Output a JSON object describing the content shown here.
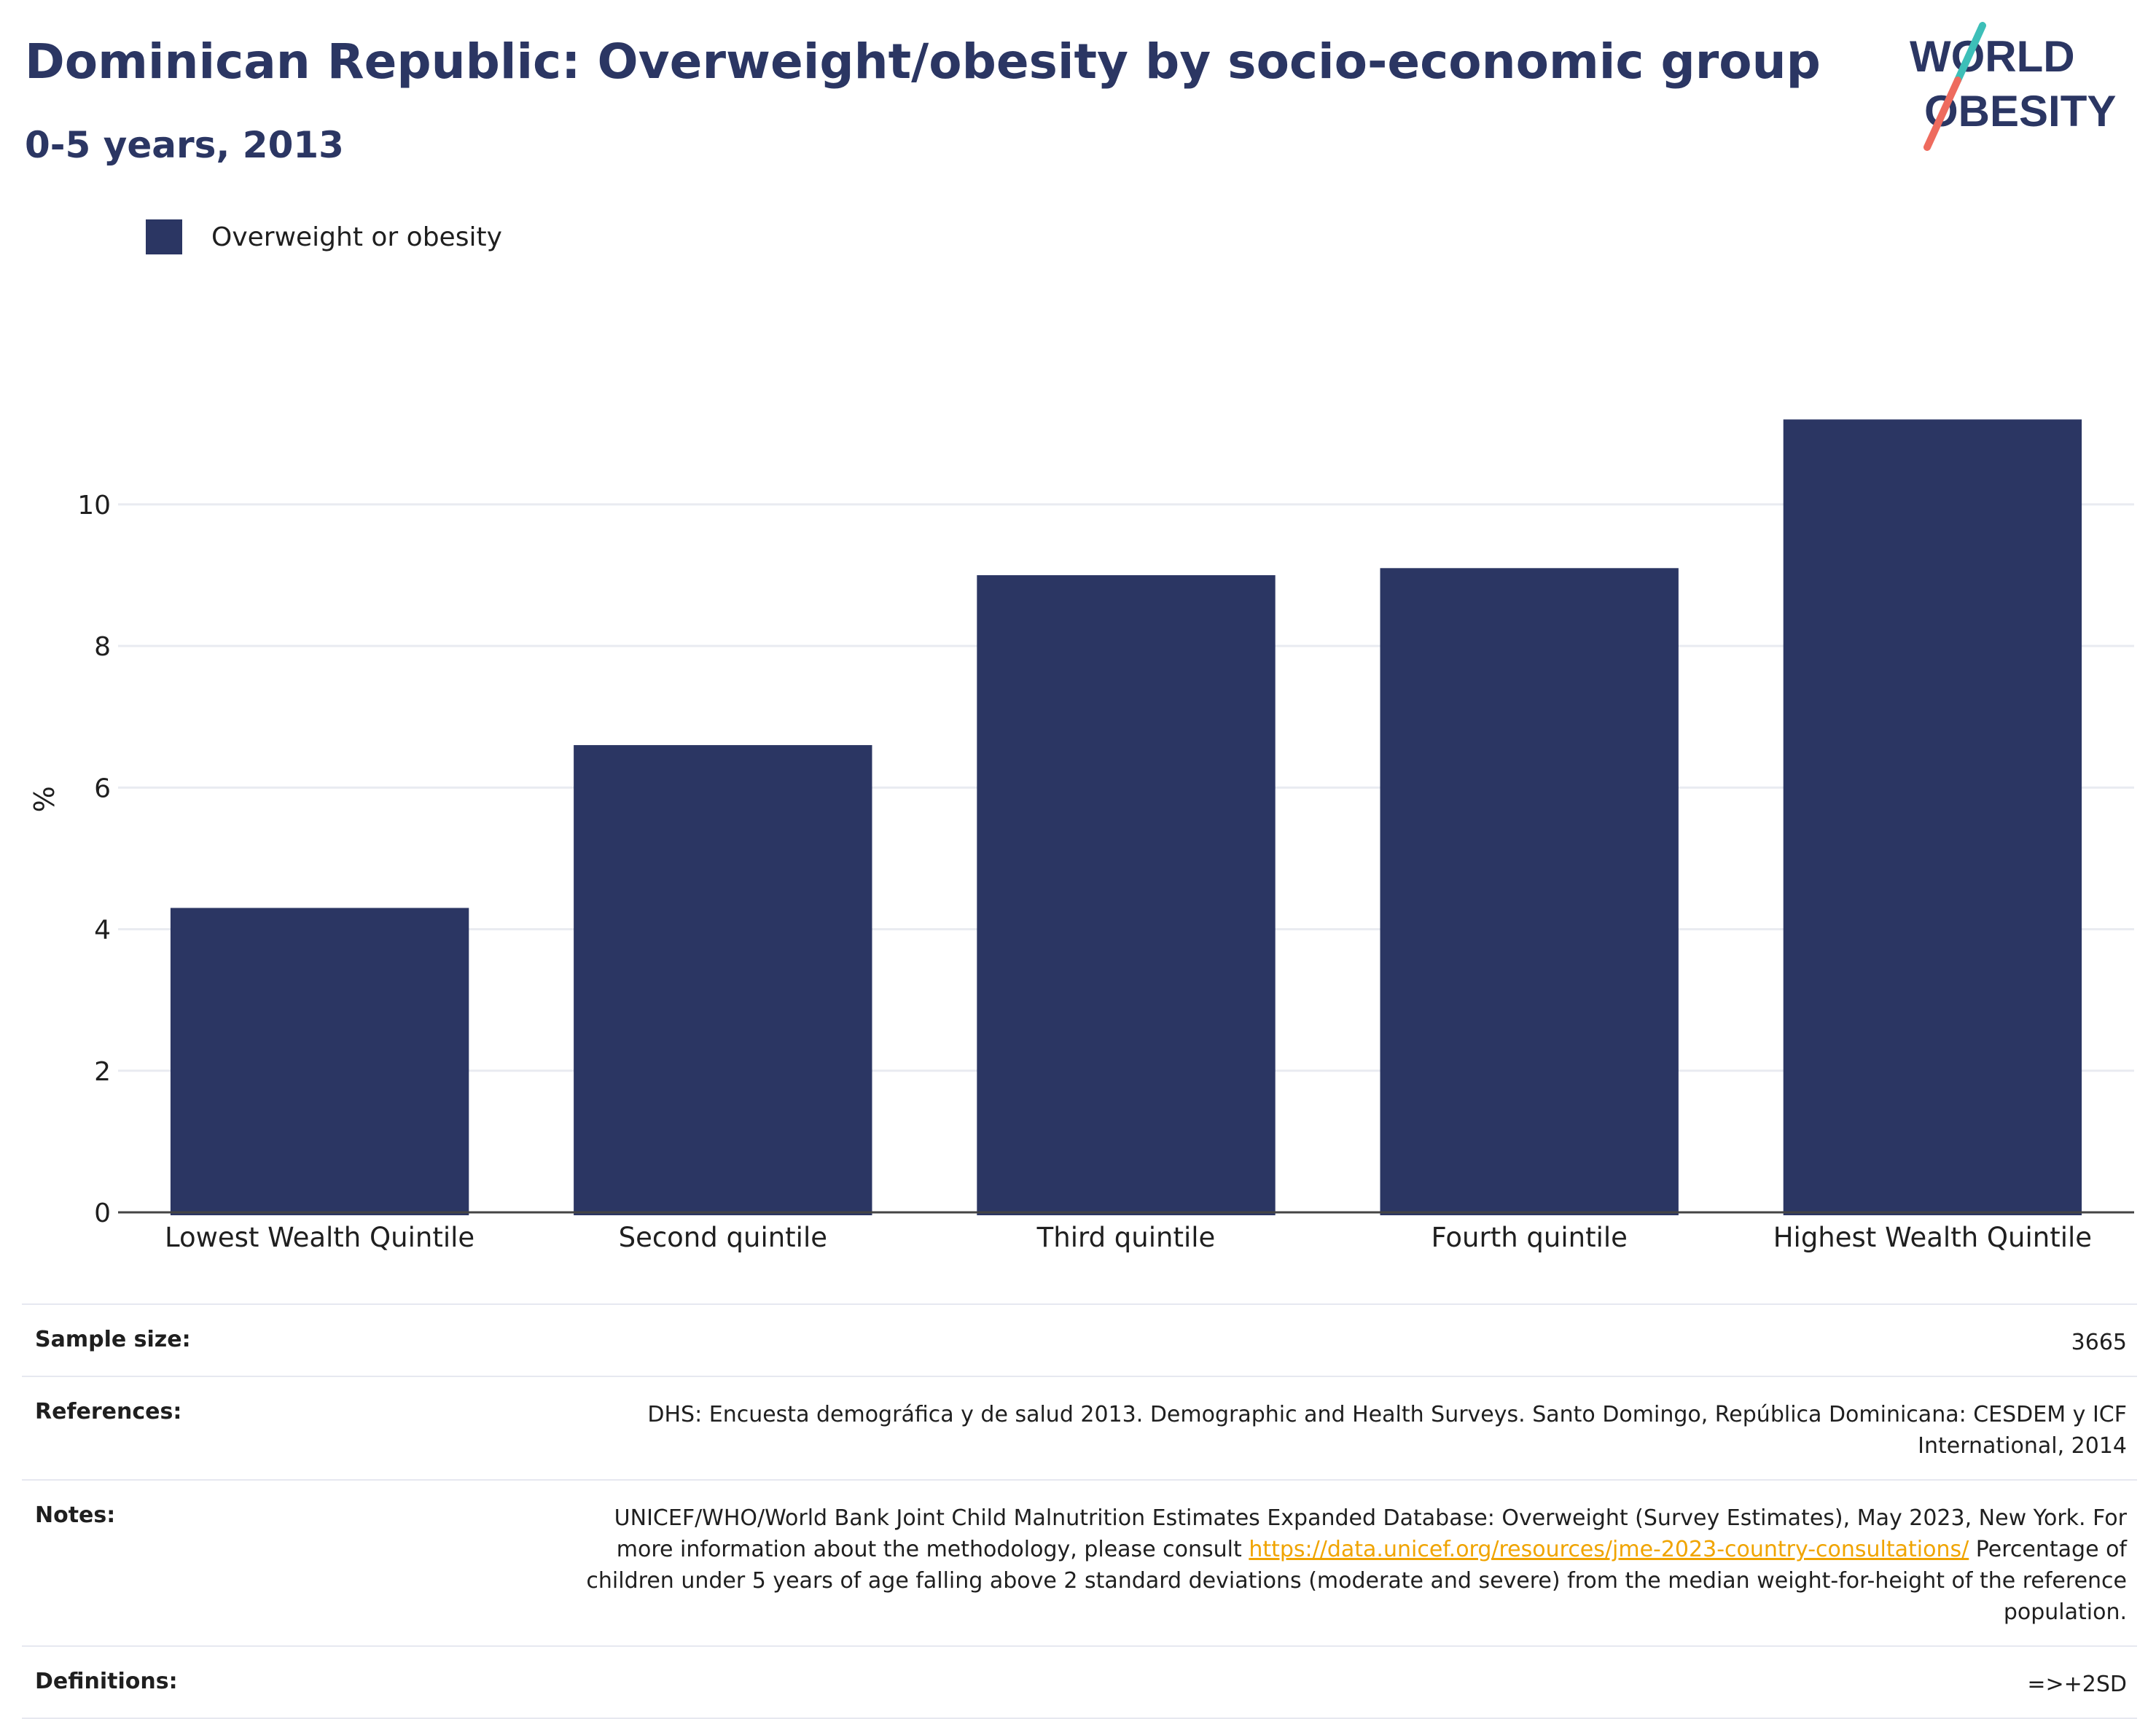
{
  "header": {
    "title": "Dominican Republic: Overweight/obesity by socio-economic group",
    "subtitle": "0-5 years, 2013"
  },
  "logo": {
    "line1": "WORLD",
    "line2": "OBESITY",
    "text_color": "#2b3663",
    "slash_colors": [
      "#3dbfb8",
      "#ee6b5e"
    ]
  },
  "legend": {
    "label": "Overweight or obesity",
    "color": "#2b3663"
  },
  "chart_data": {
    "type": "bar",
    "categories": [
      "Lowest Wealth Quintile",
      "Second quintile",
      "Third quintile",
      "Fourth quintile",
      "Highest Wealth Quintile"
    ],
    "series": [
      {
        "name": "Overweight or obesity",
        "values": [
          4.3,
          6.6,
          9.0,
          9.1,
          11.2
        ],
        "color": "#2b3663"
      }
    ],
    "ylabel": "%",
    "ylim": [
      0,
      12.8
    ],
    "yticks": [
      0,
      2,
      4,
      6,
      8,
      10
    ],
    "grid": true,
    "legend_position": "top-left"
  },
  "info_table": {
    "sample_size": {
      "label": "Sample size:",
      "value": "3665"
    },
    "references": {
      "label": "References:",
      "value": "DHS: Encuesta demográfica y de salud 2013. Demographic and Health Surveys. Santo Domingo, República Dominicana: CESDEM y ICF International, 2014"
    },
    "notes": {
      "label": "Notes:",
      "text_before": "UNICEF/WHO/World Bank Joint Child Malnutrition Estimates Expanded Database: Overweight (Survey Estimates), May 2023, New York. For more information about the methodology, please consult ",
      "link": "https://data.unicef.org/resources/jme-2023-country-consultations/",
      "text_after": " Percentage of children under 5 years of age falling above 2 standard deviations (moderate and severe) from the median weight-for-height of the reference population.",
      "link_color": "#f0a400"
    },
    "definitions": {
      "label": "Definitions:",
      "value": "=>+2SD"
    }
  }
}
